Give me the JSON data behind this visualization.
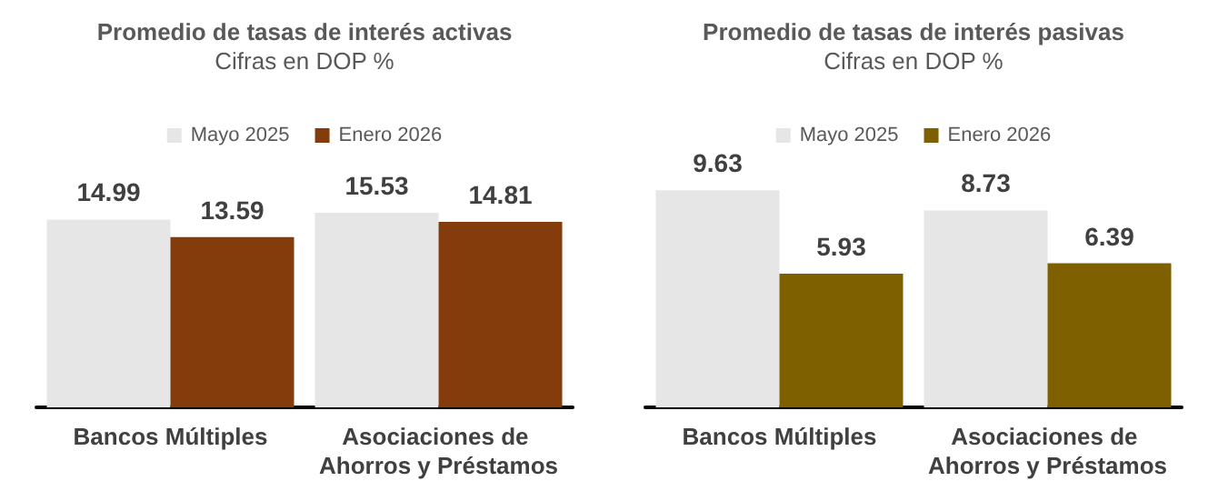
{
  "chart_data": [
    {
      "type": "bar",
      "title": "Promedio de tasas de interés activas",
      "subtitle": "Cifras en DOP %",
      "categories": [
        "Bancos Múltiples",
        "Asociaciones de Ahorros y Préstamos"
      ],
      "series": [
        {
          "name": "Mayo 2025",
          "color": "#e6e6e6",
          "values": [
            14.99,
            15.53
          ]
        },
        {
          "name": "Enero 2026",
          "color": "#843c0c",
          "values": [
            13.59,
            14.81
          ]
        }
      ],
      "data_labels": true,
      "legend": "top",
      "grid": false,
      "tick_labels": "x"
    },
    {
      "type": "bar",
      "title": "Promedio de tasas de interés pasivas",
      "subtitle": "Cifras en DOP %",
      "categories": [
        "Bancos Múltiples",
        "Asociaciones de Ahorros y Préstamos"
      ],
      "series": [
        {
          "name": "Mayo 2025",
          "color": "#e6e6e6",
          "values": [
            9.63,
            8.73
          ]
        },
        {
          "name": "Enero 2026",
          "color": "#7f6000",
          "values": [
            5.93,
            6.39
          ]
        }
      ],
      "data_labels": true,
      "legend": "top",
      "grid": false,
      "tick_labels": "x"
    }
  ]
}
